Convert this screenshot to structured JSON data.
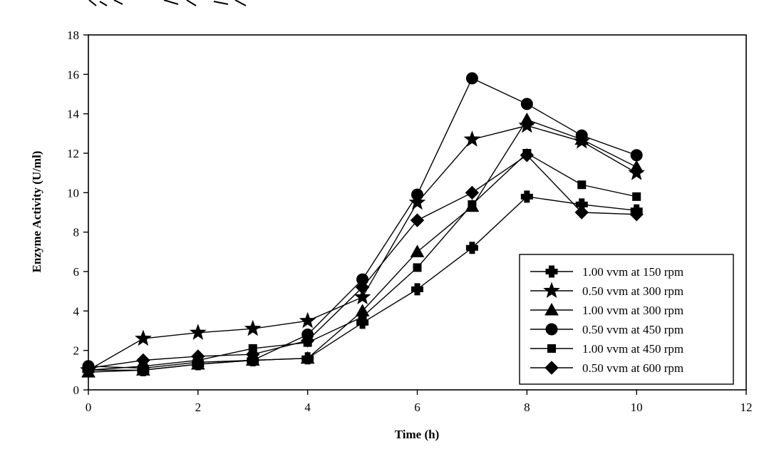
{
  "chart_data": {
    "type": "line",
    "xlabel": "Time (h)",
    "ylabel": "Enzyme Activity (U/ml)",
    "xlim": [
      0,
      12
    ],
    "ylim": [
      0,
      18
    ],
    "xticks": [
      0,
      2,
      4,
      6,
      8,
      10,
      12
    ],
    "yticks": [
      0,
      2,
      4,
      6,
      8,
      10,
      12,
      14,
      16,
      18
    ],
    "grid": false,
    "legend_position": "lower-right",
    "series": [
      {
        "name": "1.00 vvm at 150 rpm",
        "marker": "cross",
        "x": [
          0,
          1,
          2,
          3,
          4,
          5,
          6,
          7,
          8,
          9,
          10
        ],
        "y": [
          1.0,
          1.0,
          1.3,
          1.5,
          1.6,
          3.4,
          5.1,
          7.2,
          9.8,
          9.4,
          9.1
        ]
      },
      {
        "name": "0.50 vvm at 300 rpm",
        "marker": "star",
        "x": [
          0,
          1,
          2,
          3,
          4,
          5,
          6,
          7,
          8,
          9,
          10
        ],
        "y": [
          1.0,
          2.6,
          2.9,
          3.1,
          3.5,
          4.7,
          9.5,
          12.7,
          13.4,
          12.6,
          11.0
        ]
      },
      {
        "name": "1.00 vvm at 300 rpm",
        "marker": "triangle",
        "x": [
          0,
          1,
          2,
          3,
          4,
          5,
          6,
          7,
          8,
          9,
          10
        ],
        "y": [
          0.9,
          1.0,
          1.3,
          1.5,
          1.6,
          4.0,
          7.0,
          9.3,
          13.7,
          12.7,
          11.3
        ]
      },
      {
        "name": "0.50 vvm at 450 rpm",
        "marker": "circle",
        "x": [
          0,
          1,
          2,
          3,
          4,
          5,
          6,
          7,
          8,
          9,
          10
        ],
        "y": [
          1.2,
          1.1,
          1.4,
          1.5,
          2.8,
          5.6,
          9.9,
          15.8,
          14.5,
          12.9,
          11.9
        ]
      },
      {
        "name": "1.00 vvm at 450 rpm",
        "marker": "square",
        "x": [
          0,
          1,
          2,
          3,
          4,
          5,
          6,
          7,
          8,
          9,
          10
        ],
        "y": [
          1.0,
          1.2,
          1.5,
          2.1,
          2.4,
          3.7,
          6.2,
          9.4,
          12.0,
          10.4,
          9.8
        ]
      },
      {
        "name": "0.50 vvm at 600 rpm",
        "marker": "diamond",
        "x": [
          0,
          1,
          2,
          3,
          4,
          5,
          6,
          7,
          8,
          9,
          10
        ],
        "y": [
          1.1,
          1.5,
          1.7,
          1.8,
          2.5,
          5.2,
          8.6,
          10.0,
          11.9,
          9.0,
          8.9
        ]
      }
    ]
  }
}
